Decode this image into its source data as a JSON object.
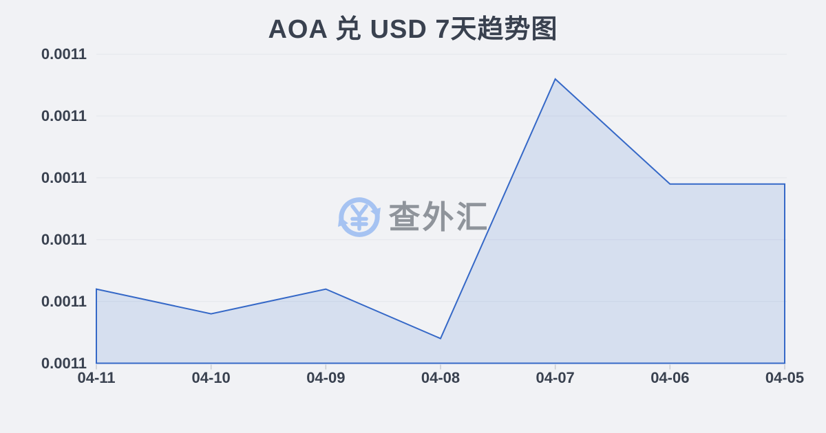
{
  "page": {
    "background_color": "#f1f2f5"
  },
  "header": {
    "title": "AOA 兑 USD 7天趋势图",
    "title_color": "#39414f"
  },
  "watermark": {
    "text": "查外汇",
    "text_color": "#8f949b",
    "icon": "currency-exchange-refresh-icon",
    "icon_color": "#a6c3f2"
  },
  "chart_data": {
    "type": "area",
    "title": "AOA 兑 USD 7天趋势图",
    "categories": [
      "04-11",
      "04-10",
      "04-09",
      "04-08",
      "04-07",
      "04-06",
      "04-05"
    ],
    "series": [
      {
        "name": "AOA/USD",
        "values": [
          0.001092,
          0.001088,
          0.001092,
          0.001084,
          0.001126,
          0.001109,
          0.001109
        ]
      }
    ],
    "y_tick_labels": [
      "0.0011",
      "0.0011",
      "0.0011",
      "0.0011",
      "0.0011",
      "0.0011"
    ],
    "ylim": [
      0.00108,
      0.00113
    ],
    "xlabel": "",
    "ylabel": "",
    "grid": true,
    "legend": "none",
    "line_color": "#3568c7",
    "fill_color": "#3b6fd0",
    "fill_opacity": 0.15,
    "gridline_color": "#e4e6eb",
    "tick_color": "#c8cbd1",
    "axis_label_color": "#39414f"
  }
}
